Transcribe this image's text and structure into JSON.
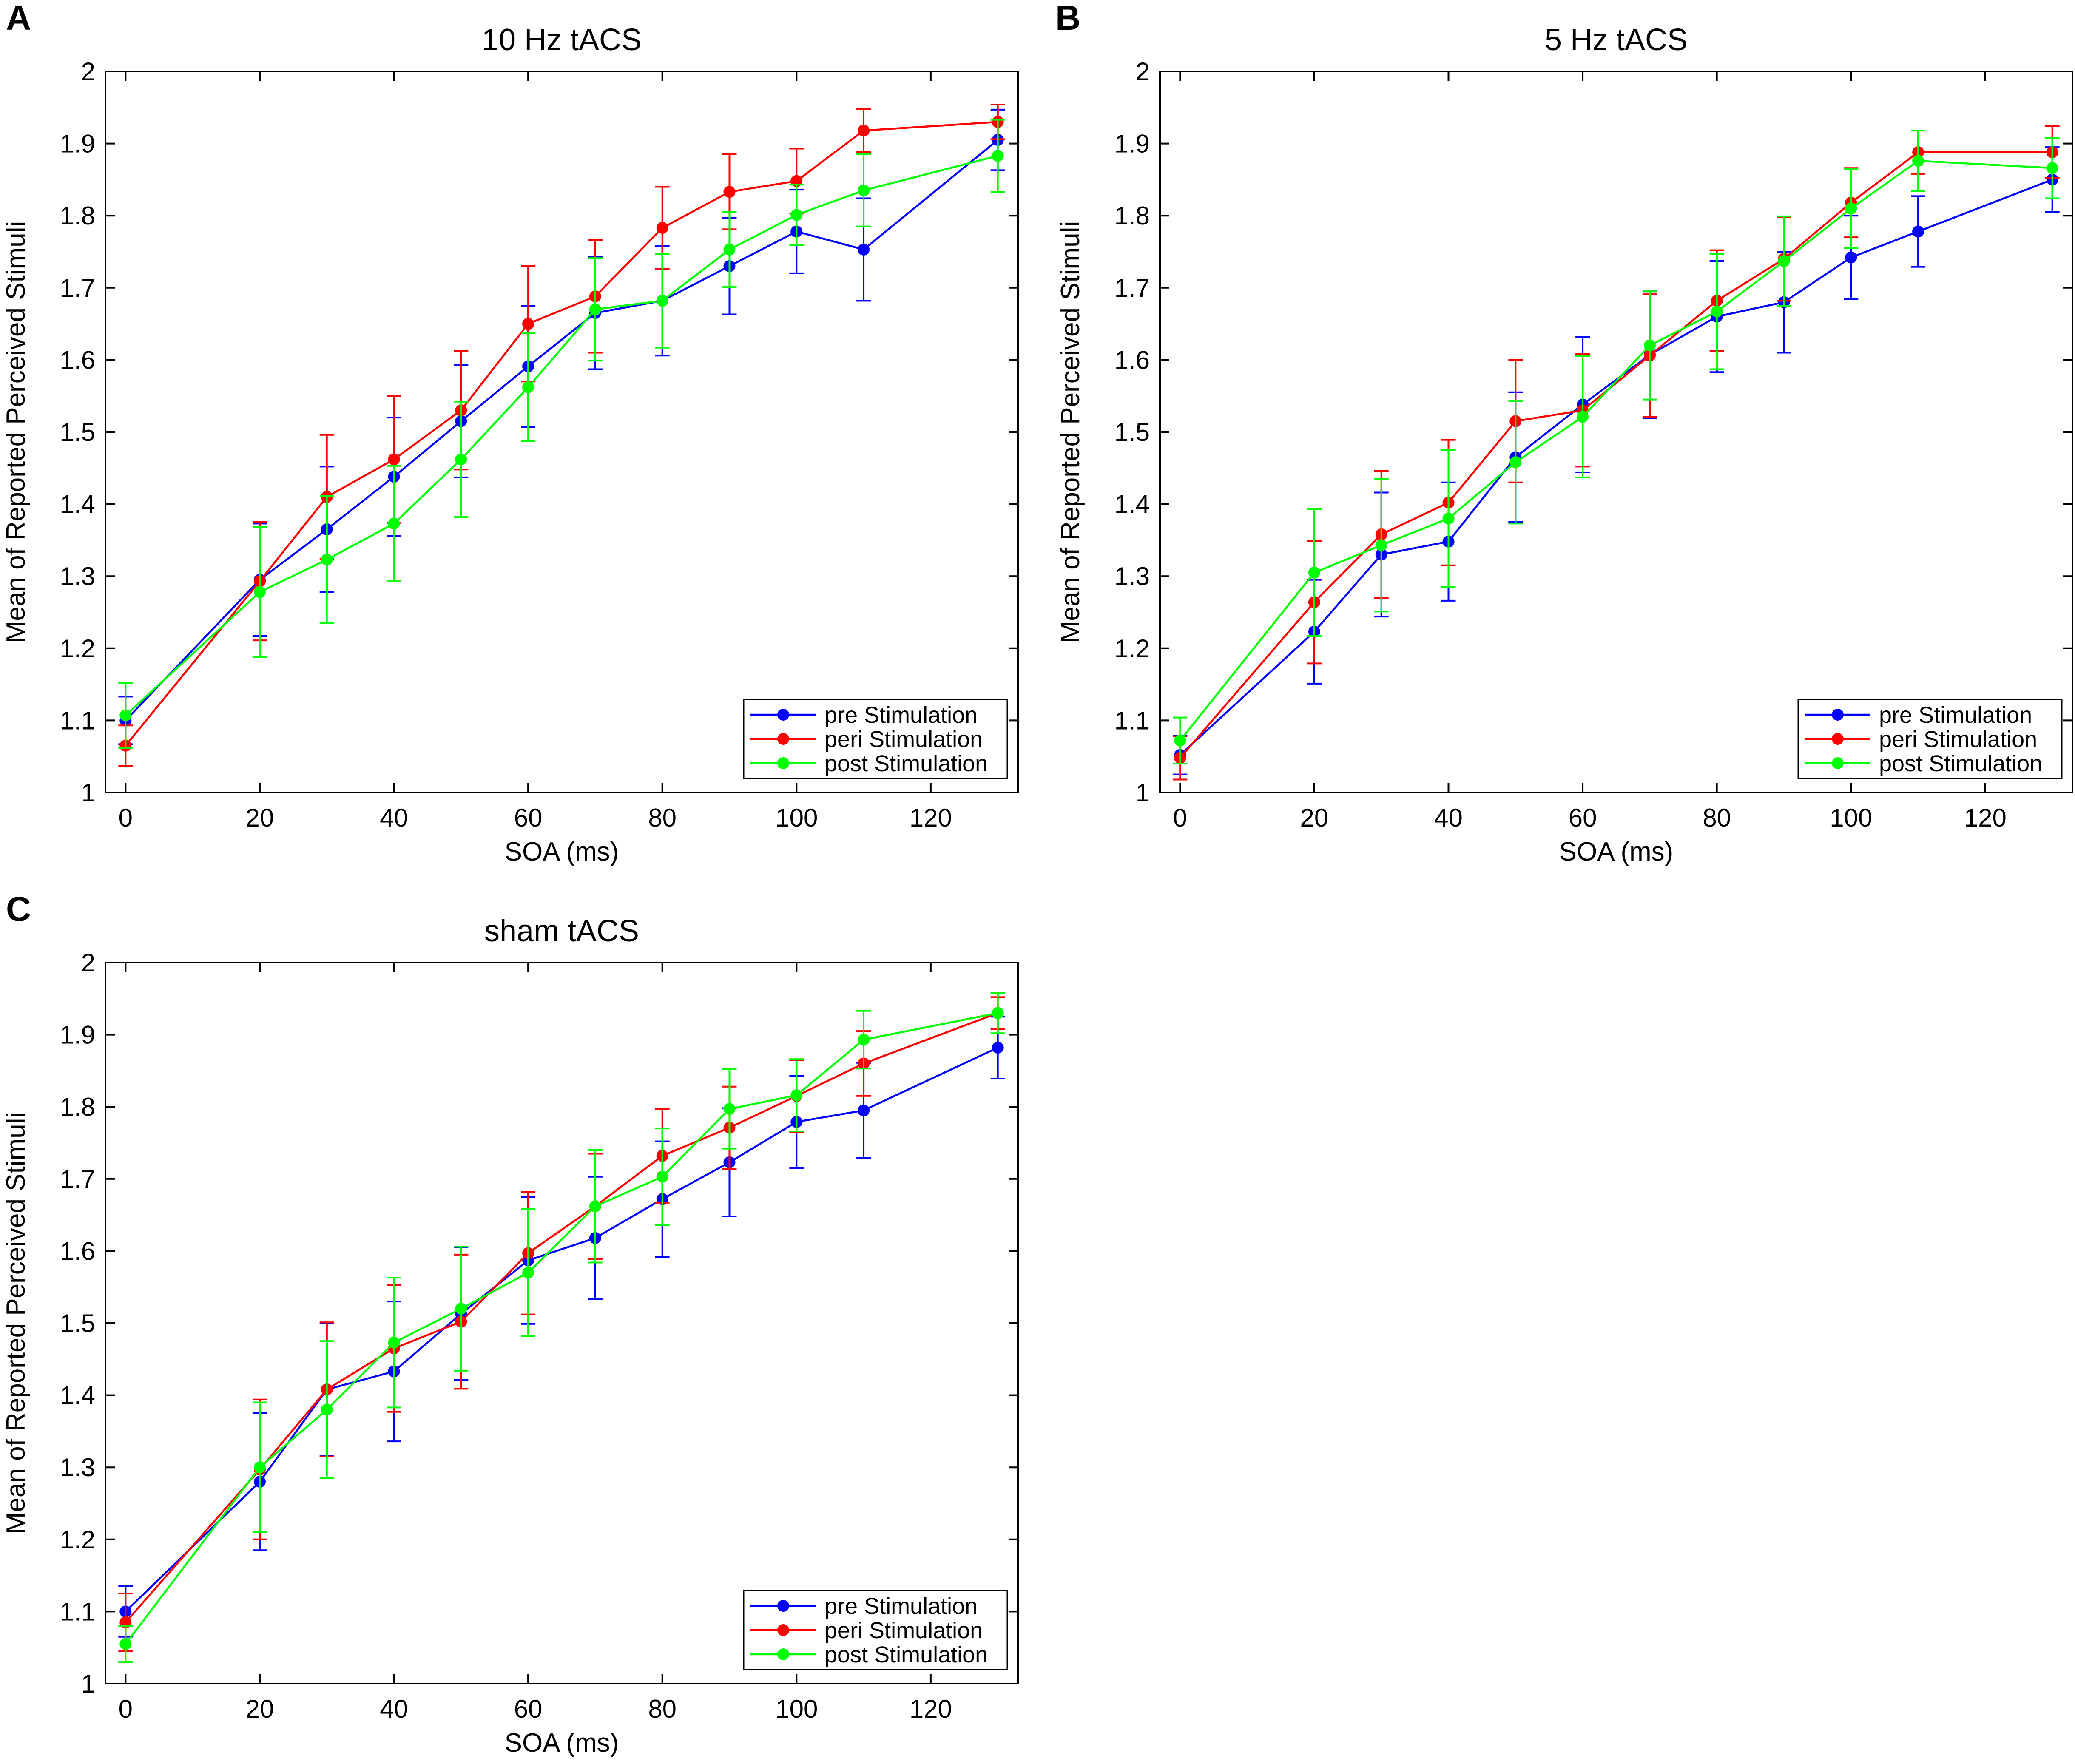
{
  "figure": {
    "panels": [
      "A",
      "B",
      "C"
    ],
    "series_names": [
      "pre Stimulation",
      "peri Stimulation",
      "post Stimulation"
    ],
    "colors": {
      "pre": "#0000ff",
      "peri": "#ff0000",
      "post": "#00ff00"
    }
  },
  "chart_data": [
    {
      "type": "line",
      "panel": "A",
      "title": "10 Hz tACS",
      "xlabel": "SOA (ms)",
      "ylabel": "Mean of Reported Perceived Stimuli",
      "xlim": [
        -3,
        133
      ],
      "ylim": [
        1,
        2
      ],
      "xticks": [
        "0",
        "20",
        "40",
        "60",
        "80",
        "100",
        "120"
      ],
      "yticks": [
        "1",
        "1.1",
        "1.2",
        "1.3",
        "1.4",
        "1.5",
        "1.6",
        "1.7",
        "1.8",
        "1.9",
        "2"
      ],
      "legend": "bottom-right",
      "x": [
        0,
        20,
        30,
        40,
        50,
        60,
        70,
        80,
        90,
        100,
        110,
        130
      ],
      "series": [
        {
          "name": "pre Stimulation",
          "color": "#0000ff",
          "values": [
            1.1,
            1.295,
            1.365,
            1.438,
            1.515,
            1.591,
            1.665,
            1.682,
            1.73,
            1.778,
            1.753,
            1.905
          ],
          "errors": [
            0.033,
            0.078,
            0.087,
            0.082,
            0.078,
            0.084,
            0.078,
            0.076,
            0.067,
            0.058,
            0.071,
            0.042
          ]
        },
        {
          "name": "peri Stimulation",
          "color": "#ff0000",
          "values": [
            1.065,
            1.293,
            1.41,
            1.462,
            1.53,
            1.65,
            1.688,
            1.783,
            1.833,
            1.848,
            1.918,
            1.93
          ],
          "errors": [
            0.028,
            0.082,
            0.086,
            0.088,
            0.082,
            0.08,
            0.078,
            0.057,
            0.052,
            0.045,
            0.03,
            0.024
          ]
        },
        {
          "name": "post Stimulation",
          "color": "#00ff00",
          "values": [
            1.107,
            1.278,
            1.323,
            1.373,
            1.462,
            1.562,
            1.67,
            1.682,
            1.753,
            1.801,
            1.835,
            1.883
          ],
          "errors": [
            0.045,
            0.09,
            0.088,
            0.08,
            0.08,
            0.075,
            0.071,
            0.065,
            0.052,
            0.042,
            0.05,
            0.05
          ]
        }
      ]
    },
    {
      "type": "line",
      "panel": "B",
      "title": "5 Hz tACS",
      "xlabel": "SOA (ms)",
      "ylabel": "Mean of Reported Perceived Stimuli",
      "xlim": [
        -3,
        133
      ],
      "ylim": [
        1,
        2
      ],
      "xticks": [
        "0",
        "20",
        "40",
        "60",
        "80",
        "100",
        "120"
      ],
      "yticks": [
        "1",
        "1.1",
        "1.2",
        "1.3",
        "1.4",
        "1.5",
        "1.6",
        "1.7",
        "1.8",
        "1.9",
        "2"
      ],
      "legend": "bottom-right",
      "x": [
        0,
        20,
        30,
        40,
        50,
        60,
        70,
        80,
        90,
        100,
        110,
        130
      ],
      "series": [
        {
          "name": "pre Stimulation",
          "color": "#0000ff",
          "values": [
            1.052,
            1.223,
            1.33,
            1.348,
            1.465,
            1.538,
            1.607,
            1.66,
            1.68,
            1.742,
            1.778,
            1.85
          ],
          "errors": [
            0.027,
            0.072,
            0.086,
            0.082,
            0.09,
            0.094,
            0.088,
            0.077,
            0.07,
            0.058,
            0.049,
            0.045
          ]
        },
        {
          "name": "peri Stimulation",
          "color": "#ff0000",
          "values": [
            1.048,
            1.264,
            1.358,
            1.402,
            1.515,
            1.53,
            1.606,
            1.682,
            1.74,
            1.818,
            1.888,
            1.888
          ],
          "errors": [
            0.03,
            0.085,
            0.088,
            0.087,
            0.085,
            0.078,
            0.085,
            0.07,
            0.058,
            0.048,
            0.03,
            0.036
          ]
        },
        {
          "name": "post Stimulation",
          "color": "#00ff00",
          "values": [
            1.072,
            1.305,
            1.343,
            1.38,
            1.458,
            1.521,
            1.62,
            1.667,
            1.737,
            1.81,
            1.876,
            1.866
          ],
          "errors": [
            0.032,
            0.088,
            0.092,
            0.095,
            0.085,
            0.084,
            0.075,
            0.08,
            0.062,
            0.055,
            0.042,
            0.042
          ]
        }
      ]
    },
    {
      "type": "line",
      "panel": "C",
      "title": "sham tACS",
      "xlabel": "SOA (ms)",
      "ylabel": "Mean of Reported Perceived Stimuli",
      "xlim": [
        -3,
        133
      ],
      "ylim": [
        1,
        2
      ],
      "xticks": [
        "0",
        "20",
        "40",
        "60",
        "80",
        "100",
        "120"
      ],
      "yticks": [
        "1",
        "1.1",
        "1.2",
        "1.3",
        "1.4",
        "1.5",
        "1.6",
        "1.7",
        "1.8",
        "1.9",
        "2"
      ],
      "legend": "bottom-right",
      "x": [
        0,
        20,
        30,
        40,
        50,
        60,
        70,
        80,
        90,
        100,
        110,
        130
      ],
      "series": [
        {
          "name": "pre Stimulation",
          "color": "#0000ff",
          "values": [
            1.1,
            1.28,
            1.408,
            1.433,
            1.513,
            1.587,
            1.618,
            1.672,
            1.723,
            1.779,
            1.795,
            1.882
          ],
          "errors": [
            0.035,
            0.095,
            0.092,
            0.097,
            0.092,
            0.088,
            0.085,
            0.08,
            0.075,
            0.064,
            0.066,
            0.043
          ]
        },
        {
          "name": "peri Stimulation",
          "color": "#ff0000",
          "values": [
            1.085,
            1.297,
            1.408,
            1.465,
            1.502,
            1.597,
            1.662,
            1.732,
            1.771,
            1.815,
            1.86,
            1.93
          ],
          "errors": [
            0.04,
            0.097,
            0.093,
            0.088,
            0.093,
            0.085,
            0.073,
            0.065,
            0.057,
            0.05,
            0.045,
            0.022
          ]
        },
        {
          "name": "post Stimulation",
          "color": "#00ff00",
          "values": [
            1.055,
            1.3,
            1.38,
            1.473,
            1.52,
            1.57,
            1.662,
            1.703,
            1.797,
            1.816,
            1.893,
            1.93
          ],
          "errors": [
            0.025,
            0.09,
            0.095,
            0.09,
            0.086,
            0.088,
            0.078,
            0.067,
            0.055,
            0.05,
            0.04,
            0.028
          ]
        }
      ]
    }
  ]
}
